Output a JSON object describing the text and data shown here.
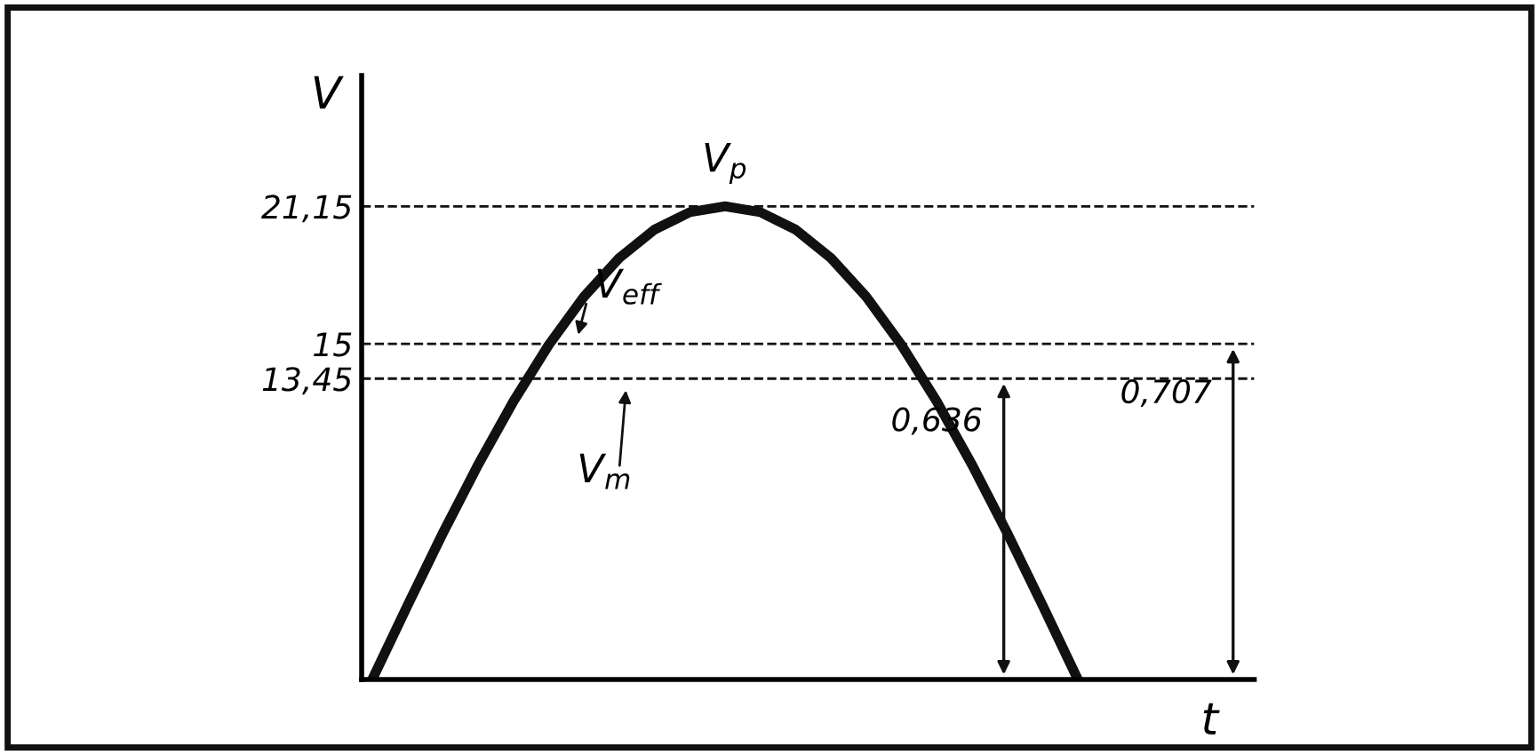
{
  "chart_data": {
    "type": "line",
    "xlabel": "t",
    "ylabel": "V",
    "categories": [
      null,
      null,
      null,
      null,
      null,
      null,
      null,
      null,
      null,
      null,
      null,
      null,
      null,
      null,
      null,
      null,
      null,
      null,
      null,
      null,
      null,
      null,
      null,
      null,
      null,
      null
    ],
    "series": [
      {
        "color": "#111111",
        "values": [
          0,
          3.31,
          6.54,
          9.6,
          12.43,
          14.95,
          17.11,
          18.84,
          20.11,
          20.89,
          21.15,
          20.89,
          20.11,
          18.84,
          17.11,
          14.95,
          12.43,
          9.6,
          6.54,
          3.31,
          0,
          null,
          null,
          null,
          null,
          null
        ]
      }
    ],
    "ylim": [
      0,
      27
    ],
    "yticks": [
      {
        "value": 21.15,
        "label": "21,15"
      },
      {
        "value": 15,
        "label": "15"
      },
      {
        "value": 13.45,
        "label": "13,45"
      }
    ],
    "ref_lines": [
      {
        "axis": "y",
        "value": 21.15,
        "line_style": "dashed",
        "color": "#111111"
      },
      {
        "axis": "y",
        "value": 15,
        "line_style": "dashed",
        "color": "#111111"
      },
      {
        "axis": "y",
        "value": 13.45,
        "line_style": "dashed",
        "color": "#111111"
      }
    ],
    "annotations": [
      {
        "text": "V$_{p}$",
        "y": 21.15
      },
      {
        "text": "V$_{eff}$",
        "y": 15
      },
      {
        "text": "V$_{m}$",
        "y": 13.45
      },
      {
        "text": "0,636",
        "y": 13.45
      },
      {
        "text": "0,707",
        "y": 15
      }
    ],
    "grid": false,
    "legend": false,
    "marker": "none",
    "line_style": "solid"
  }
}
